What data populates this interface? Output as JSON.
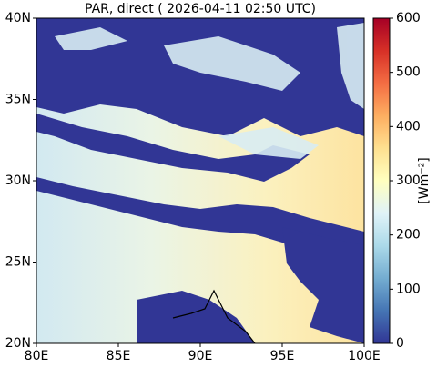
{
  "chart_data": {
    "type": "raster-map",
    "title": "PAR, direct ( 2026-04-11 02:50 UTC)",
    "xlim": [
      80,
      100
    ],
    "xticks": [
      {
        "value": 80,
        "label": "80E"
      },
      {
        "value": 85,
        "label": "85E"
      },
      {
        "value": 90,
        "label": "90E"
      },
      {
        "value": 95,
        "label": "95E"
      },
      {
        "value": 100,
        "label": "100E"
      }
    ],
    "ylim": [
      20,
      40
    ],
    "yticks": [
      {
        "value": 20,
        "label": "20N"
      },
      {
        "value": 25,
        "label": "25N"
      },
      {
        "value": 30,
        "label": "30N"
      },
      {
        "value": 35,
        "label": "35N"
      },
      {
        "value": 40,
        "label": "40N"
      }
    ],
    "colorbar": {
      "label": "[Wm⁻²]",
      "lim": [
        0,
        600
      ],
      "ticks": [
        0,
        100,
        200,
        300,
        400,
        500,
        600
      ],
      "colors": [
        "#313695",
        "#4575b4",
        "#74add1",
        "#abd9e9",
        "#e0f3f8",
        "#ffffbf",
        "#fee090",
        "#fdae61",
        "#f46d43",
        "#d73027",
        "#a50026"
      ]
    }
  }
}
